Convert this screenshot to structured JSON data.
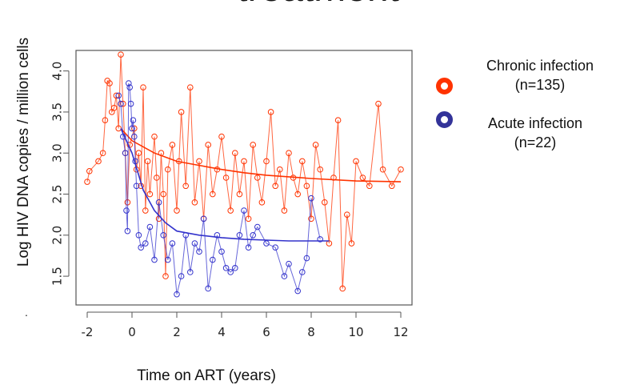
{
  "page": {
    "title_partial": "treatment",
    "stray_mark": "."
  },
  "legend": [
    {
      "label_line1": "Chronic infection",
      "label_line2": "(n=135)",
      "color": "#ff3300"
    },
    {
      "label_line1": "Acute infection",
      "label_line2": "(n=22)",
      "color": "#333399"
    }
  ],
  "chart_data": {
    "type": "scatter",
    "xlabel": "Time on ART (years)",
    "ylabel": "Log HIV DNA copies / million cells",
    "xlim": [
      -2.5,
      12.5
    ],
    "ylim": [
      1.15,
      4.25
    ],
    "xticks": [
      -2,
      0,
      2,
      4,
      6,
      8,
      10,
      12
    ],
    "yticks": [
      1.5,
      2.0,
      2.5,
      3.0,
      3.5,
      4.0
    ],
    "ytick_labels": [
      "1.5",
      "2.0",
      "2.5",
      "3.0",
      "3.5",
      "4.0"
    ],
    "grid": false,
    "series": [
      {
        "name": "Chronic infection",
        "color": "#ff3300",
        "fit_line": {
          "x": [
            -0.5,
            0.0,
            1.0,
            2.0,
            3.0,
            4.0,
            5.0,
            6.0,
            8.0,
            10.0,
            12.0
          ],
          "y": [
            3.3,
            3.15,
            3.0,
            2.9,
            2.85,
            2.8,
            2.76,
            2.73,
            2.69,
            2.66,
            2.65
          ]
        },
        "points": [
          [
            -2,
            2.65
          ],
          [
            -1.9,
            2.78
          ],
          [
            -1.5,
            2.9
          ],
          [
            -1.3,
            3.0
          ],
          [
            -1.2,
            3.4
          ],
          [
            -1.1,
            3.88
          ],
          [
            -1.0,
            3.85
          ],
          [
            -0.9,
            3.5
          ],
          [
            -0.8,
            3.55
          ],
          [
            -0.7,
            3.7
          ],
          [
            -0.6,
            3.3
          ],
          [
            -0.5,
            4.2
          ],
          [
            -0.4,
            3.6
          ],
          [
            -0.3,
            3.0
          ],
          [
            -0.2,
            2.4
          ],
          [
            -0.1,
            3.1
          ],
          [
            0.1,
            3.3
          ],
          [
            0.2,
            2.8
          ],
          [
            0.3,
            3.0
          ],
          [
            0.4,
            2.6
          ],
          [
            0.5,
            3.8
          ],
          [
            0.6,
            2.3
          ],
          [
            0.7,
            2.9
          ],
          [
            0.8,
            2.5
          ],
          [
            1.0,
            3.2
          ],
          [
            1.1,
            2.7
          ],
          [
            1.2,
            2.2
          ],
          [
            1.3,
            3.0
          ],
          [
            1.4,
            2.5
          ],
          [
            1.5,
            1.5
          ],
          [
            1.6,
            2.8
          ],
          [
            1.8,
            3.1
          ],
          [
            2.0,
            2.3
          ],
          [
            2.1,
            2.9
          ],
          [
            2.2,
            3.5
          ],
          [
            2.4,
            2.6
          ],
          [
            2.6,
            3.8
          ],
          [
            2.8,
            2.4
          ],
          [
            3.0,
            2.9
          ],
          [
            3.2,
            2.2
          ],
          [
            3.4,
            3.1
          ],
          [
            3.6,
            2.5
          ],
          [
            3.8,
            2.8
          ],
          [
            4.0,
            3.2
          ],
          [
            4.2,
            2.7
          ],
          [
            4.4,
            2.3
          ],
          [
            4.6,
            3.0
          ],
          [
            4.8,
            2.5
          ],
          [
            5.0,
            2.9
          ],
          [
            5.2,
            2.2
          ],
          [
            5.4,
            3.1
          ],
          [
            5.6,
            2.7
          ],
          [
            5.8,
            2.4
          ],
          [
            6.0,
            2.9
          ],
          [
            6.2,
            3.5
          ],
          [
            6.4,
            2.6
          ],
          [
            6.6,
            2.8
          ],
          [
            6.8,
            2.3
          ],
          [
            7.0,
            3.0
          ],
          [
            7.2,
            2.7
          ],
          [
            7.4,
            2.5
          ],
          [
            7.6,
            2.9
          ],
          [
            7.8,
            2.6
          ],
          [
            8.0,
            2.2
          ],
          [
            8.2,
            3.1
          ],
          [
            8.4,
            2.8
          ],
          [
            8.6,
            2.4
          ],
          [
            8.8,
            1.9
          ],
          [
            9.0,
            2.7
          ],
          [
            9.2,
            3.4
          ],
          [
            9.4,
            1.35
          ],
          [
            9.6,
            2.25
          ],
          [
            9.8,
            1.9
          ],
          [
            10.0,
            2.9
          ],
          [
            10.3,
            2.7
          ],
          [
            10.6,
            2.6
          ],
          [
            11.0,
            3.6
          ],
          [
            11.2,
            2.8
          ],
          [
            11.6,
            2.6
          ],
          [
            12.0,
            2.8
          ]
        ]
      },
      {
        "name": "Acute infection",
        "color": "#3333cc",
        "fit_line": {
          "x": [
            -0.5,
            0.0,
            0.5,
            1.0,
            1.5,
            2.0,
            3.0,
            4.0,
            5.0,
            6.0,
            7.0,
            8.0,
            8.8
          ],
          "y": [
            3.3,
            3.0,
            2.55,
            2.3,
            2.15,
            2.05,
            2.0,
            1.97,
            1.95,
            1.94,
            1.93,
            1.93,
            1.93
          ]
        },
        "points": [
          [
            -0.6,
            3.7
          ],
          [
            -0.5,
            3.6
          ],
          [
            -0.4,
            3.2
          ],
          [
            -0.3,
            3.0
          ],
          [
            -0.25,
            2.3
          ],
          [
            -0.2,
            2.05
          ],
          [
            -0.15,
            3.85
          ],
          [
            -0.1,
            3.8
          ],
          [
            -0.05,
            3.6
          ],
          [
            0.0,
            3.3
          ],
          [
            0.05,
            3.4
          ],
          [
            0.1,
            3.2
          ],
          [
            0.15,
            2.9
          ],
          [
            0.2,
            2.6
          ],
          [
            0.3,
            2.0
          ],
          [
            0.4,
            1.85
          ],
          [
            0.6,
            1.9
          ],
          [
            0.8,
            2.1
          ],
          [
            1.0,
            1.7
          ],
          [
            1.2,
            2.4
          ],
          [
            1.4,
            2.0
          ],
          [
            1.6,
            1.7
          ],
          [
            1.8,
            1.9
          ],
          [
            2.0,
            1.28
          ],
          [
            2.2,
            1.5
          ],
          [
            2.4,
            2.0
          ],
          [
            2.6,
            1.55
          ],
          [
            2.8,
            1.9
          ],
          [
            3.0,
            1.8
          ],
          [
            3.2,
            2.2
          ],
          [
            3.4,
            1.35
          ],
          [
            3.6,
            1.7
          ],
          [
            3.8,
            2.0
          ],
          [
            4.0,
            1.8
          ],
          [
            4.2,
            1.6
          ],
          [
            4.4,
            1.55
          ],
          [
            4.6,
            1.6
          ],
          [
            4.8,
            2.0
          ],
          [
            5.0,
            2.3
          ],
          [
            5.2,
            1.85
          ],
          [
            5.4,
            2.0
          ],
          [
            5.6,
            2.1
          ],
          [
            6.0,
            1.9
          ],
          [
            6.4,
            1.85
          ],
          [
            6.8,
            1.5
          ],
          [
            7.0,
            1.65
          ],
          [
            7.4,
            1.32
          ],
          [
            7.6,
            1.55
          ],
          [
            7.8,
            1.72
          ],
          [
            8.0,
            2.45
          ],
          [
            8.4,
            1.95
          ]
        ]
      }
    ]
  }
}
